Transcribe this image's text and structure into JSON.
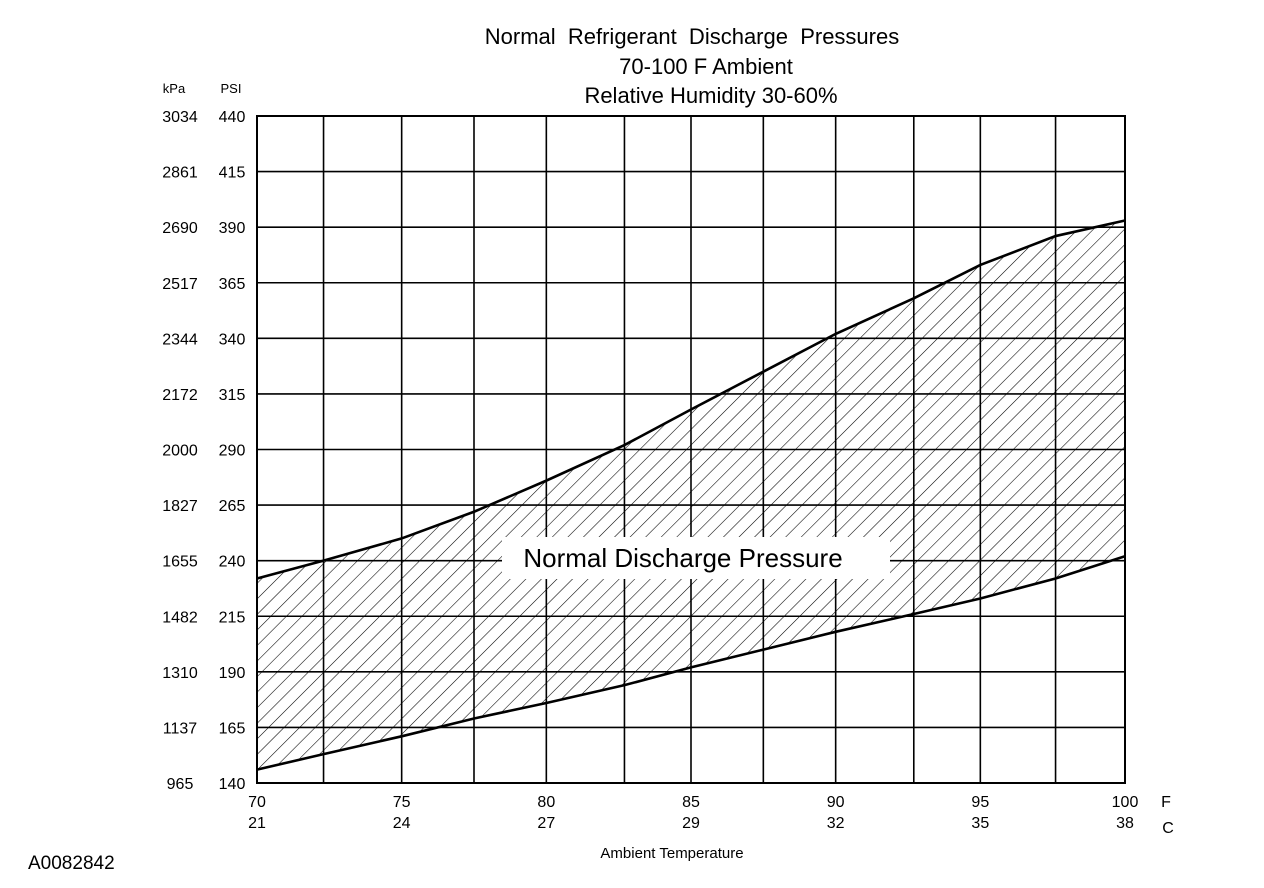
{
  "chart_data": {
    "type": "area",
    "title": "Normal  Refrigerant  Discharge  Pressures",
    "subtitle_1": "70-100 F Ambient",
    "subtitle_2": "Relative Humidity 30-60%",
    "xlabel": "Ambient Temperature",
    "x_unit_f": "F",
    "x_unit_c": "C",
    "y_unit_kpa": "kPa",
    "y_unit_psi": "PSI",
    "band_label": "Normal Discharge Pressure",
    "figure_id": "A0082842",
    "xlim": [
      70,
      100
    ],
    "ylim": [
      140,
      440
    ],
    "x_ticks_f": [
      "70",
      "75",
      "80",
      "85",
      "90",
      "95",
      "100"
    ],
    "x_ticks_c": [
      "21",
      "24",
      "27",
      "29",
      "32",
      "35",
      "38"
    ],
    "x_tick_values": [
      70,
      75,
      80,
      85,
      90,
      95,
      100
    ],
    "y_ticks_psi": [
      "440",
      "415",
      "390",
      "365",
      "340",
      "315",
      "290",
      "265",
      "240",
      "215",
      "190",
      "165",
      "140"
    ],
    "y_ticks_kpa": [
      "3034",
      "2861",
      "2690",
      "2517",
      "2344",
      "2172",
      "2000",
      "1827",
      "1655",
      "1482",
      "1310",
      "1137",
      "965"
    ],
    "y_tick_values": [
      440,
      415,
      390,
      365,
      340,
      315,
      290,
      265,
      240,
      215,
      190,
      165,
      140
    ],
    "x_gridlines": [
      70,
      72.3,
      75,
      77.5,
      80,
      82.7,
      85,
      87.5,
      90,
      92.7,
      95,
      97.6,
      100
    ],
    "grid": true,
    "series": [
      {
        "role": "upper",
        "x": [
          70,
          72.3,
          75,
          77.5,
          80,
          82.7,
          85,
          87.5,
          90,
          92.7,
          95,
          97.6,
          100
        ],
        "values": [
          232,
          240,
          250,
          262,
          276,
          292,
          308,
          325,
          342,
          358,
          373,
          386,
          393
        ]
      },
      {
        "role": "lower",
        "x": [
          70,
          72.3,
          75,
          77.5,
          80,
          82.7,
          85,
          87.5,
          90,
          92.7,
          95,
          97.6,
          100
        ],
        "values": [
          146,
          153,
          161,
          169,
          176,
          184,
          192,
          200,
          208,
          216,
          223,
          232,
          242
        ]
      }
    ],
    "colors": {
      "line": "#000000",
      "grid": "#000000",
      "hatch": "#000000",
      "background": "#ffffff"
    }
  }
}
